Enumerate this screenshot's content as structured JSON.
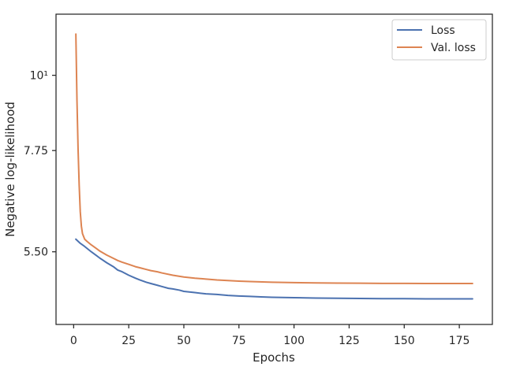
{
  "chart_data": {
    "type": "line",
    "xlabel": "Epochs",
    "ylabel": "Negative log-likelihood",
    "xlim": [
      -8,
      190
    ],
    "ylim": [
      4.3,
      12.3
    ],
    "yscale": "log",
    "xticks": [
      0,
      25,
      50,
      75,
      100,
      125,
      150,
      175
    ],
    "xtick_labels": [
      "0",
      "25",
      "50",
      "75",
      "100",
      "125",
      "150",
      "175"
    ],
    "yticks": [
      5.5,
      7.75,
      10
    ],
    "ytick_labels": [
      "5.50",
      "7.75",
      "10¹"
    ],
    "legend_position": "top-right",
    "grid": false,
    "series": [
      {
        "name": "Loss",
        "color": "#4c72b0",
        "x": [
          1,
          2,
          3,
          5,
          8,
          10,
          12,
          15,
          18,
          20,
          22,
          25,
          28,
          30,
          33,
          35,
          38,
          40,
          43,
          45,
          48,
          50,
          55,
          60,
          65,
          70,
          75,
          80,
          85,
          90,
          95,
          100,
          105,
          110,
          115,
          120,
          125,
          130,
          135,
          140,
          145,
          150,
          155,
          160,
          165,
          170,
          175,
          181
        ],
        "y": [
          5.74,
          5.7,
          5.66,
          5.6,
          5.5,
          5.44,
          5.38,
          5.3,
          5.23,
          5.17,
          5.14,
          5.08,
          5.03,
          5.0,
          4.96,
          4.94,
          4.91,
          4.89,
          4.86,
          4.85,
          4.83,
          4.81,
          4.79,
          4.77,
          4.76,
          4.745,
          4.735,
          4.728,
          4.72,
          4.715,
          4.712,
          4.708,
          4.705,
          4.702,
          4.7,
          4.699,
          4.697,
          4.695,
          4.694,
          4.693,
          4.692,
          4.692,
          4.691,
          4.69,
          4.69,
          4.69,
          4.689,
          4.689
        ]
      },
      {
        "name": "Val. loss",
        "color": "#dd8452",
        "x": [
          1,
          1.5,
          2,
          2.5,
          3,
          3.5,
          4,
          5,
          6,
          8,
          10,
          12,
          15,
          18,
          20,
          22,
          25,
          28,
          30,
          33,
          35,
          38,
          40,
          45,
          50,
          55,
          60,
          65,
          70,
          75,
          80,
          90,
          100,
          110,
          120,
          130,
          140,
          150,
          160,
          170,
          181
        ],
        "y": [
          11.5,
          9.2,
          7.8,
          6.9,
          6.3,
          6.0,
          5.85,
          5.74,
          5.7,
          5.63,
          5.57,
          5.51,
          5.44,
          5.38,
          5.34,
          5.31,
          5.27,
          5.23,
          5.21,
          5.18,
          5.16,
          5.14,
          5.12,
          5.08,
          5.05,
          5.03,
          5.015,
          5.0,
          4.99,
          4.98,
          4.972,
          4.962,
          4.955,
          4.95,
          4.946,
          4.944,
          4.942,
          4.941,
          4.94,
          4.94,
          4.94
        ]
      }
    ]
  }
}
